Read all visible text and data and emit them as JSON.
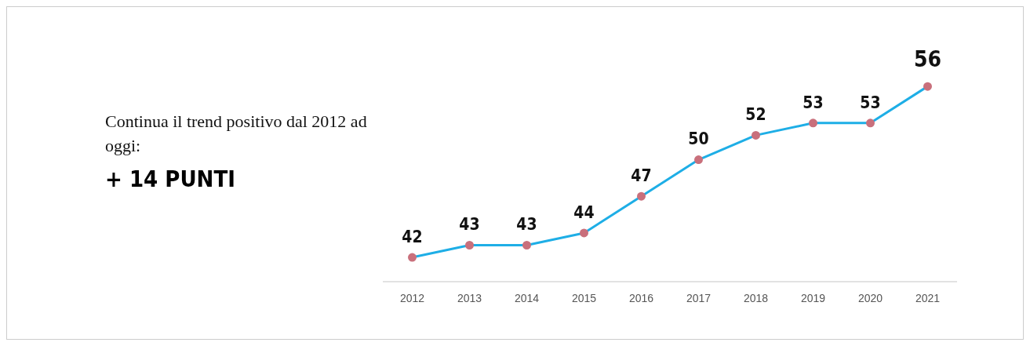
{
  "chart_data": {
    "type": "line",
    "title": "Continua il trend positivo dal 2012 ad oggi:",
    "subtitle": "+ 14 PUNTI",
    "categories": [
      "2012",
      "2013",
      "2014",
      "2015",
      "2016",
      "2017",
      "2018",
      "2019",
      "2020",
      "2021"
    ],
    "series": [
      {
        "color": "#1eaee6",
        "values": [
          42,
          43,
          43,
          44,
          47,
          50,
          52,
          53,
          53,
          56
        ]
      }
    ],
    "data_labels": true,
    "marker": "circle",
    "grid": false,
    "legend": false,
    "tick_labels": "x"
  }
}
